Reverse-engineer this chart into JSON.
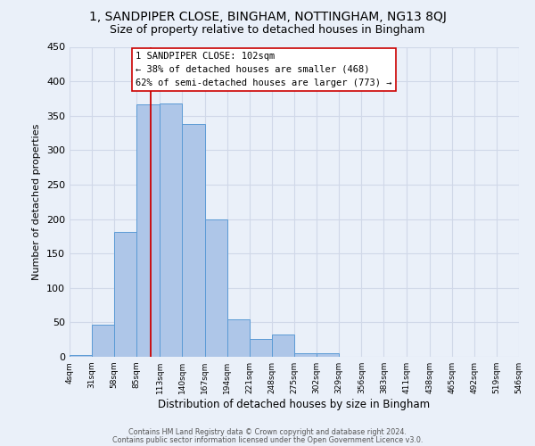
{
  "title": "1, SANDPIPER CLOSE, BINGHAM, NOTTINGHAM, NG13 8QJ",
  "subtitle": "Size of property relative to detached houses in Bingham",
  "xlabel": "Distribution of detached houses by size in Bingham",
  "ylabel": "Number of detached properties",
  "bin_labels": [
    "4sqm",
    "31sqm",
    "58sqm",
    "85sqm",
    "113sqm",
    "140sqm",
    "167sqm",
    "194sqm",
    "221sqm",
    "248sqm",
    "275sqm",
    "302sqm",
    "329sqm",
    "356sqm",
    "383sqm",
    "411sqm",
    "438sqm",
    "465sqm",
    "492sqm",
    "519sqm",
    "546sqm"
  ],
  "bar_values": [
    3,
    47,
    181,
    367,
    368,
    338,
    199,
    54,
    26,
    33,
    5,
    5,
    0,
    0,
    0,
    0,
    0,
    0,
    0,
    0
  ],
  "bar_color": "#aec6e8",
  "bar_edge_color": "#5b9bd5",
  "property_size": 102,
  "bin_edges": [
    4,
    31,
    58,
    85,
    113,
    140,
    167,
    194,
    221,
    248,
    275,
    302,
    329,
    356,
    383,
    411,
    438,
    465,
    492,
    519,
    546
  ],
  "annotation_title": "1 SANDPIPER CLOSE: 102sqm",
  "annotation_line2": "← 38% of detached houses are smaller (468)",
  "annotation_line3": "62% of semi-detached houses are larger (773) →",
  "annotation_line_color": "#cc0000",
  "ylim": [
    0,
    450
  ],
  "yticks": [
    0,
    50,
    100,
    150,
    200,
    250,
    300,
    350,
    400,
    450
  ],
  "footer_line1": "Contains HM Land Registry data © Crown copyright and database right 2024.",
  "footer_line2": "Contains public sector information licensed under the Open Government Licence v3.0.",
  "bg_color": "#eaf0f9",
  "grid_color": "#d0d8e8",
  "title_fontsize": 10,
  "subtitle_fontsize": 9
}
